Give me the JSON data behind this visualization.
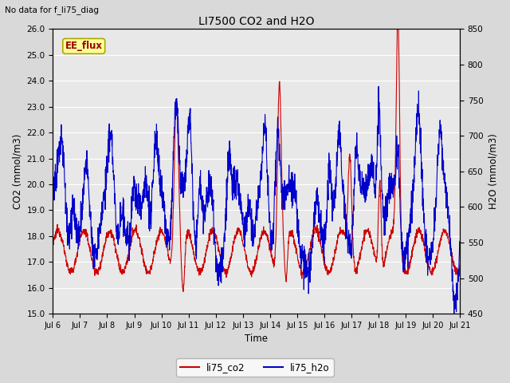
{
  "title": "LI7500 CO2 and H2O",
  "top_left_text": "No data for f_li75_diag",
  "annotation_text": "EE_flux",
  "xlabel": "Time",
  "ylabel_left": "CO2 (mmol/m3)",
  "ylabel_right": "H2O (mmol/m3)",
  "ylim_left": [
    15.0,
    26.0
  ],
  "ylim_right": [
    450,
    850
  ],
  "yticks_left": [
    15.0,
    16.0,
    17.0,
    18.0,
    19.0,
    20.0,
    21.0,
    22.0,
    23.0,
    24.0,
    25.0,
    26.0
  ],
  "yticks_right": [
    450,
    500,
    550,
    600,
    650,
    700,
    750,
    800,
    850
  ],
  "xtick_labels": [
    "Jul 6",
    "Jul 7",
    "Jul 8",
    "Jul 9",
    "Jul 10",
    "Jul 11",
    "Jul 12",
    "Jul 13",
    "Jul 14",
    "Jul 15",
    "Jul 16",
    "Jul 17",
    "Jul 18",
    "Jul 19",
    "Jul 20",
    "Jul 21"
  ],
  "color_co2": "#cc0000",
  "color_h2o": "#0000cc",
  "legend_co2": "li75_co2",
  "legend_h2o": "li75_h2o",
  "bg_color": "#d9d9d9",
  "plot_bg": "#e8e8e8",
  "grid_color": "#ffffff",
  "annotation_bg": "#ffff99",
  "annotation_edge": "#aaaa00",
  "annotation_text_color": "#990000",
  "figsize": [
    6.4,
    4.8
  ],
  "dpi": 100
}
